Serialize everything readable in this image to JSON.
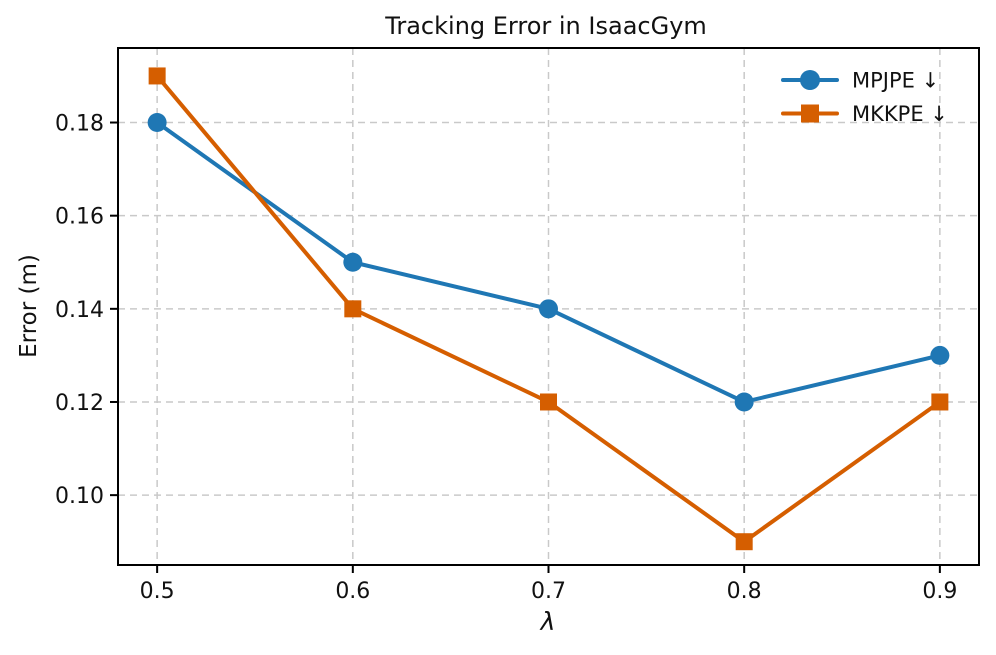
{
  "figure": {
    "background": "#ffffff"
  },
  "chart_data": {
    "type": "line",
    "title": "Tracking Error in IsaacGym",
    "xlabel": "λ",
    "ylabel": "Error (m)",
    "x": [
      0.5,
      0.6,
      0.7,
      0.8,
      0.9
    ],
    "series": [
      {
        "name": "MPJPE ↓",
        "marker": "circle",
        "color": "#1f77b4",
        "values": [
          0.18,
          0.15,
          0.14,
          0.12,
          0.13
        ]
      },
      {
        "name": "MKKPE ↓",
        "marker": "square",
        "color": "#d55e00",
        "values": [
          0.19,
          0.14,
          0.12,
          0.09,
          0.12
        ]
      }
    ],
    "xlim": [
      0.48,
      0.92
    ],
    "ylim": [
      0.085,
      0.196
    ],
    "xticks": {
      "values": [
        0.5,
        0.6,
        0.7,
        0.8,
        0.9
      ],
      "labels": [
        "0.5",
        "0.6",
        "0.7",
        "0.8",
        "0.9"
      ]
    },
    "yticks": {
      "values": [
        0.1,
        0.12,
        0.14,
        0.16,
        0.18
      ],
      "labels": [
        "0.10",
        "0.12",
        "0.14",
        "0.16",
        "0.18"
      ]
    },
    "grid": true,
    "grid_style": "dashed",
    "legend_position": "upper right",
    "legend_frame": false,
    "colors": {
      "grid": "#c9c9c9",
      "spine": "#000000",
      "tick": "#000000",
      "text": "#111111",
      "background": "#ffffff"
    }
  }
}
